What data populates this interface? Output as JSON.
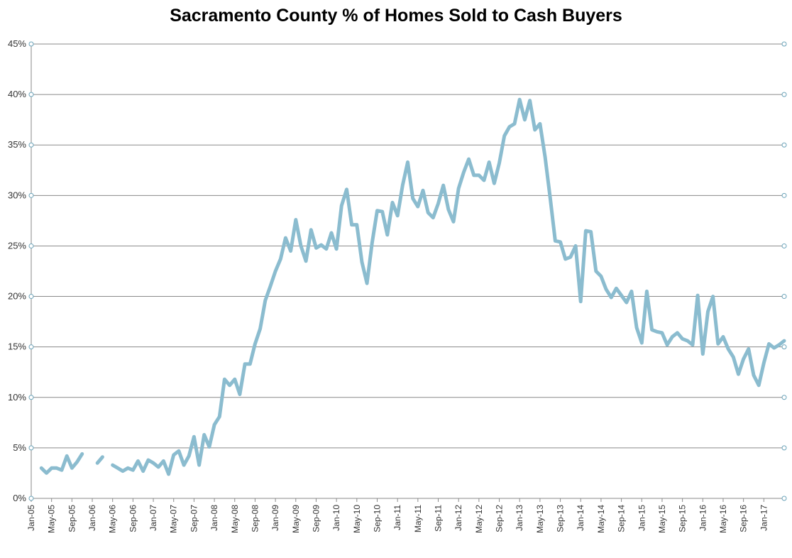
{
  "chart_data": {
    "type": "line",
    "title": "Sacramento County % of Homes Sold to Cash Buyers",
    "xlabel": "",
    "ylabel": "",
    "ylim": [
      0,
      45
    ],
    "yticks": [
      "0%",
      "5%",
      "10%",
      "15%",
      "20%",
      "25%",
      "30%",
      "35%",
      "40%",
      "45%"
    ],
    "ytick_values": [
      0,
      5,
      10,
      15,
      20,
      25,
      30,
      35,
      40,
      45
    ],
    "grid": true,
    "color": "#8bbccf",
    "xticks": [
      "Jan-05",
      "May-05",
      "Sep-05",
      "Jan-06",
      "May-06",
      "Sep-06",
      "Jan-07",
      "May-07",
      "Sep-07",
      "Jan-08",
      "May-08",
      "Sep-08",
      "Jan-09",
      "May-09",
      "Sep-09",
      "Jan-10",
      "May-10",
      "Sep-10",
      "Jan-11",
      "May-11",
      "Sep-11",
      "Jan-12",
      "May-12",
      "Sep-12",
      "Jan-13",
      "May-13",
      "Sep-13",
      "Jan-14",
      "May-14",
      "Sep-14",
      "Jan-15",
      "May-15",
      "Sep-15",
      "Jan-16",
      "May-16",
      "Sep-16",
      "Jan-17"
    ],
    "x_start": "Jan-05",
    "x_end": "Apr-17",
    "series": [
      {
        "values": [
          null,
          null,
          3.0,
          2.5,
          3.0,
          3.0,
          2.8,
          4.2,
          3.0,
          3.6,
          4.4,
          null,
          null,
          3.5,
          4.1,
          null,
          3.3,
          3.0,
          2.7,
          3.0,
          2.8,
          3.7,
          2.7,
          3.8,
          3.5,
          3.1,
          3.7,
          2.4,
          4.3,
          4.7,
          3.3,
          4.2,
          6.1,
          3.3,
          6.3,
          5.1,
          7.3,
          8.1,
          11.8,
          11.2,
          11.8,
          10.3,
          13.3,
          13.3,
          15.3,
          16.8,
          19.6,
          21.0,
          22.5,
          23.7,
          25.8,
          24.5,
          27.6,
          25.0,
          23.5,
          26.6,
          24.8,
          25.1,
          24.7,
          26.3,
          24.7,
          29.0,
          30.6,
          27.1,
          27.1,
          23.4,
          21.3,
          25.3,
          28.5,
          28.4,
          26.1,
          29.3,
          28.0,
          31.0,
          33.3,
          29.7,
          28.9,
          30.5,
          28.3,
          27.8,
          29.2,
          31.0,
          28.6,
          27.4,
          30.7,
          32.3,
          33.6,
          32.0,
          32.0,
          31.5,
          33.3,
          31.2,
          33.2,
          35.9,
          36.8,
          37.1,
          39.5,
          37.5,
          39.4,
          36.5,
          37.1,
          33.8,
          29.8,
          25.5,
          25.4,
          23.7,
          23.9,
          25.0,
          19.5,
          26.5,
          26.4,
          22.5,
          22.0,
          20.7,
          19.9,
          20.8,
          20.1,
          19.4,
          20.5,
          16.9,
          15.4,
          20.5,
          16.7,
          16.5,
          16.4,
          15.2,
          16.0,
          16.4,
          15.8,
          15.6,
          15.2,
          20.1,
          14.3,
          18.5,
          20.0,
          15.3,
          16.0,
          14.8,
          14.0,
          12.3,
          13.8,
          14.8,
          12.2,
          11.2,
          13.4,
          15.3,
          14.9,
          15.2,
          15.6
        ]
      }
    ]
  }
}
